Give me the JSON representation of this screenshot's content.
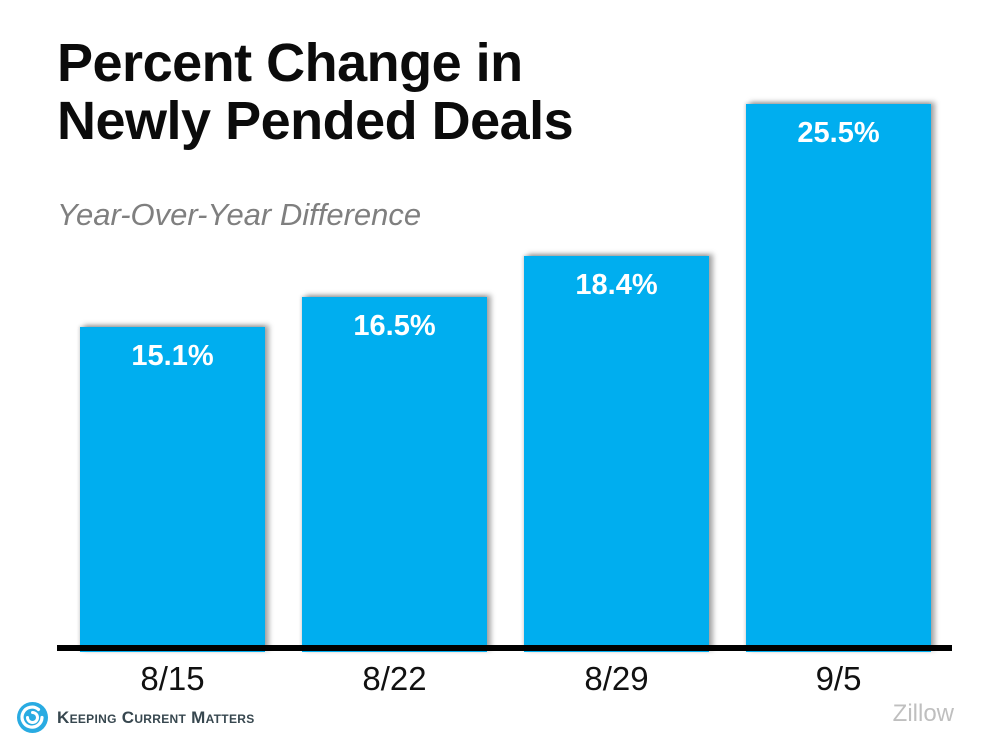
{
  "title": "Percent Change in Newly Pended Deals",
  "subtitle": "Year-Over-Year Difference",
  "source_label": "Zillow",
  "brand": {
    "name": "Keeping Current Matters",
    "logo_icon": "kcm-swirl-icon"
  },
  "colors": {
    "bar": "#00AEEF",
    "title": "#0B0B0B",
    "subtitle": "#7F7F7F",
    "axis": "#000000",
    "value_label": "#FFFFFF",
    "category_label": "#111111",
    "source": "#BFBFBF",
    "logo_blue": "#29ABE2",
    "logo_text": "#37474F"
  },
  "chart_data": {
    "type": "bar",
    "categories": [
      "8/15",
      "8/22",
      "8/29",
      "9/5"
    ],
    "values": [
      15.1,
      16.5,
      18.4,
      25.5
    ],
    "value_labels": [
      "15.1%",
      "16.5%",
      "18.4%",
      "25.5%"
    ],
    "title": "Percent Change in Newly Pended Deals",
    "subtitle": "Year-Over-Year Difference",
    "xlabel": "",
    "ylabel": "",
    "ylim": [
      0,
      26
    ],
    "grid": false,
    "legend": false,
    "value_label_position": "inside-top",
    "bar_color": "#00AEEF",
    "source": "Zillow"
  }
}
